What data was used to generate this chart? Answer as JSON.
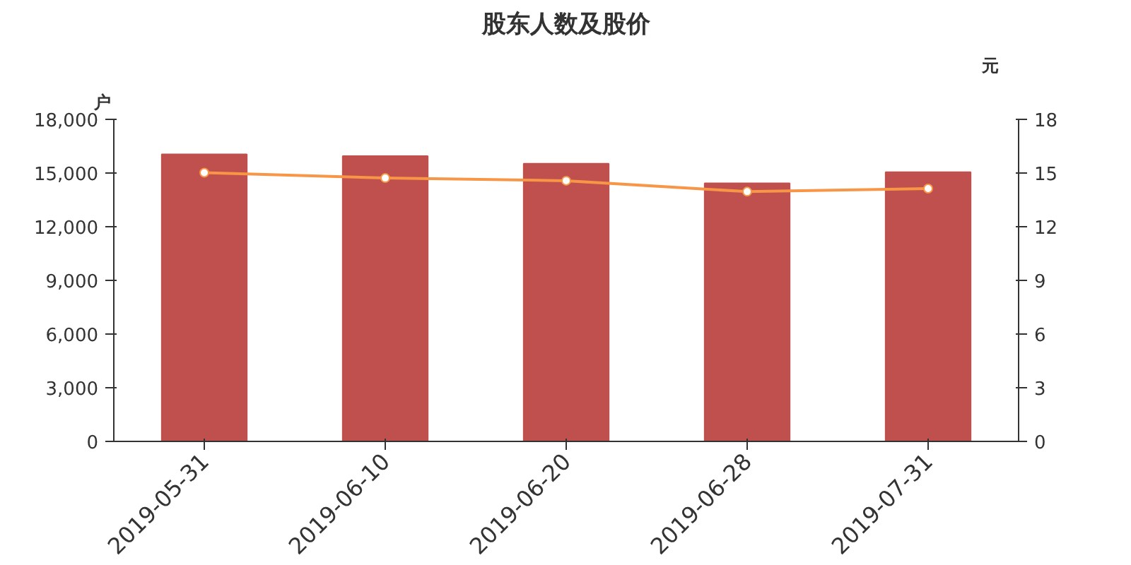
{
  "chart_data": {
    "type": "bar",
    "title": "股东人数及股价",
    "ylabel": "户",
    "y2label": "元",
    "categories": [
      "2019-05-31",
      "2019-06-10",
      "2019-06-20",
      "2019-06-28",
      "2019-07-31"
    ],
    "series": [
      {
        "color": "#c0504d",
        "values": [
          16050,
          15950,
          15520,
          14430,
          15050
        ]
      },
      {
        "type": "line",
        "axis": "y2",
        "color": "#f79646",
        "marker": "circle",
        "values": [
          15.02,
          14.72,
          14.57,
          13.96,
          14.13
        ]
      }
    ],
    "ylim": [
      0,
      18000
    ],
    "yticks": [
      {
        "value": 0,
        "label": "0"
      },
      {
        "value": 3000,
        "label": "3,000"
      },
      {
        "value": 6000,
        "label": "6,000"
      },
      {
        "value": 9000,
        "label": "9,000"
      },
      {
        "value": 12000,
        "label": "12,000"
      },
      {
        "value": 15000,
        "label": "15,000"
      },
      {
        "value": 18000,
        "label": "18,000"
      }
    ],
    "y2lim": [
      0,
      18
    ],
    "y2ticks": [
      0,
      3,
      6,
      9,
      12,
      15,
      18
    ],
    "grid": false
  }
}
